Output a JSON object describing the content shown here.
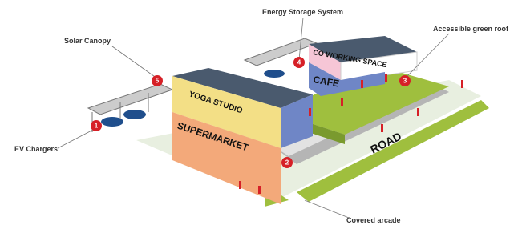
{
  "callouts": [
    {
      "number": "1",
      "label": "EV Chargers"
    },
    {
      "number": "2",
      "label": "Covered arcade"
    },
    {
      "number": "3",
      "label": "Accessible green roof"
    },
    {
      "number": "4",
      "label": "Energy Storage System"
    },
    {
      "number": "5",
      "label": "Solar Canopy"
    }
  ],
  "buildings": {
    "coworking": "CO WORKING SPACE",
    "cafe": "CAFE",
    "yoga": "YOGA STUDIO",
    "supermarket": "SUPERMARKET"
  },
  "road": "ROAD"
}
